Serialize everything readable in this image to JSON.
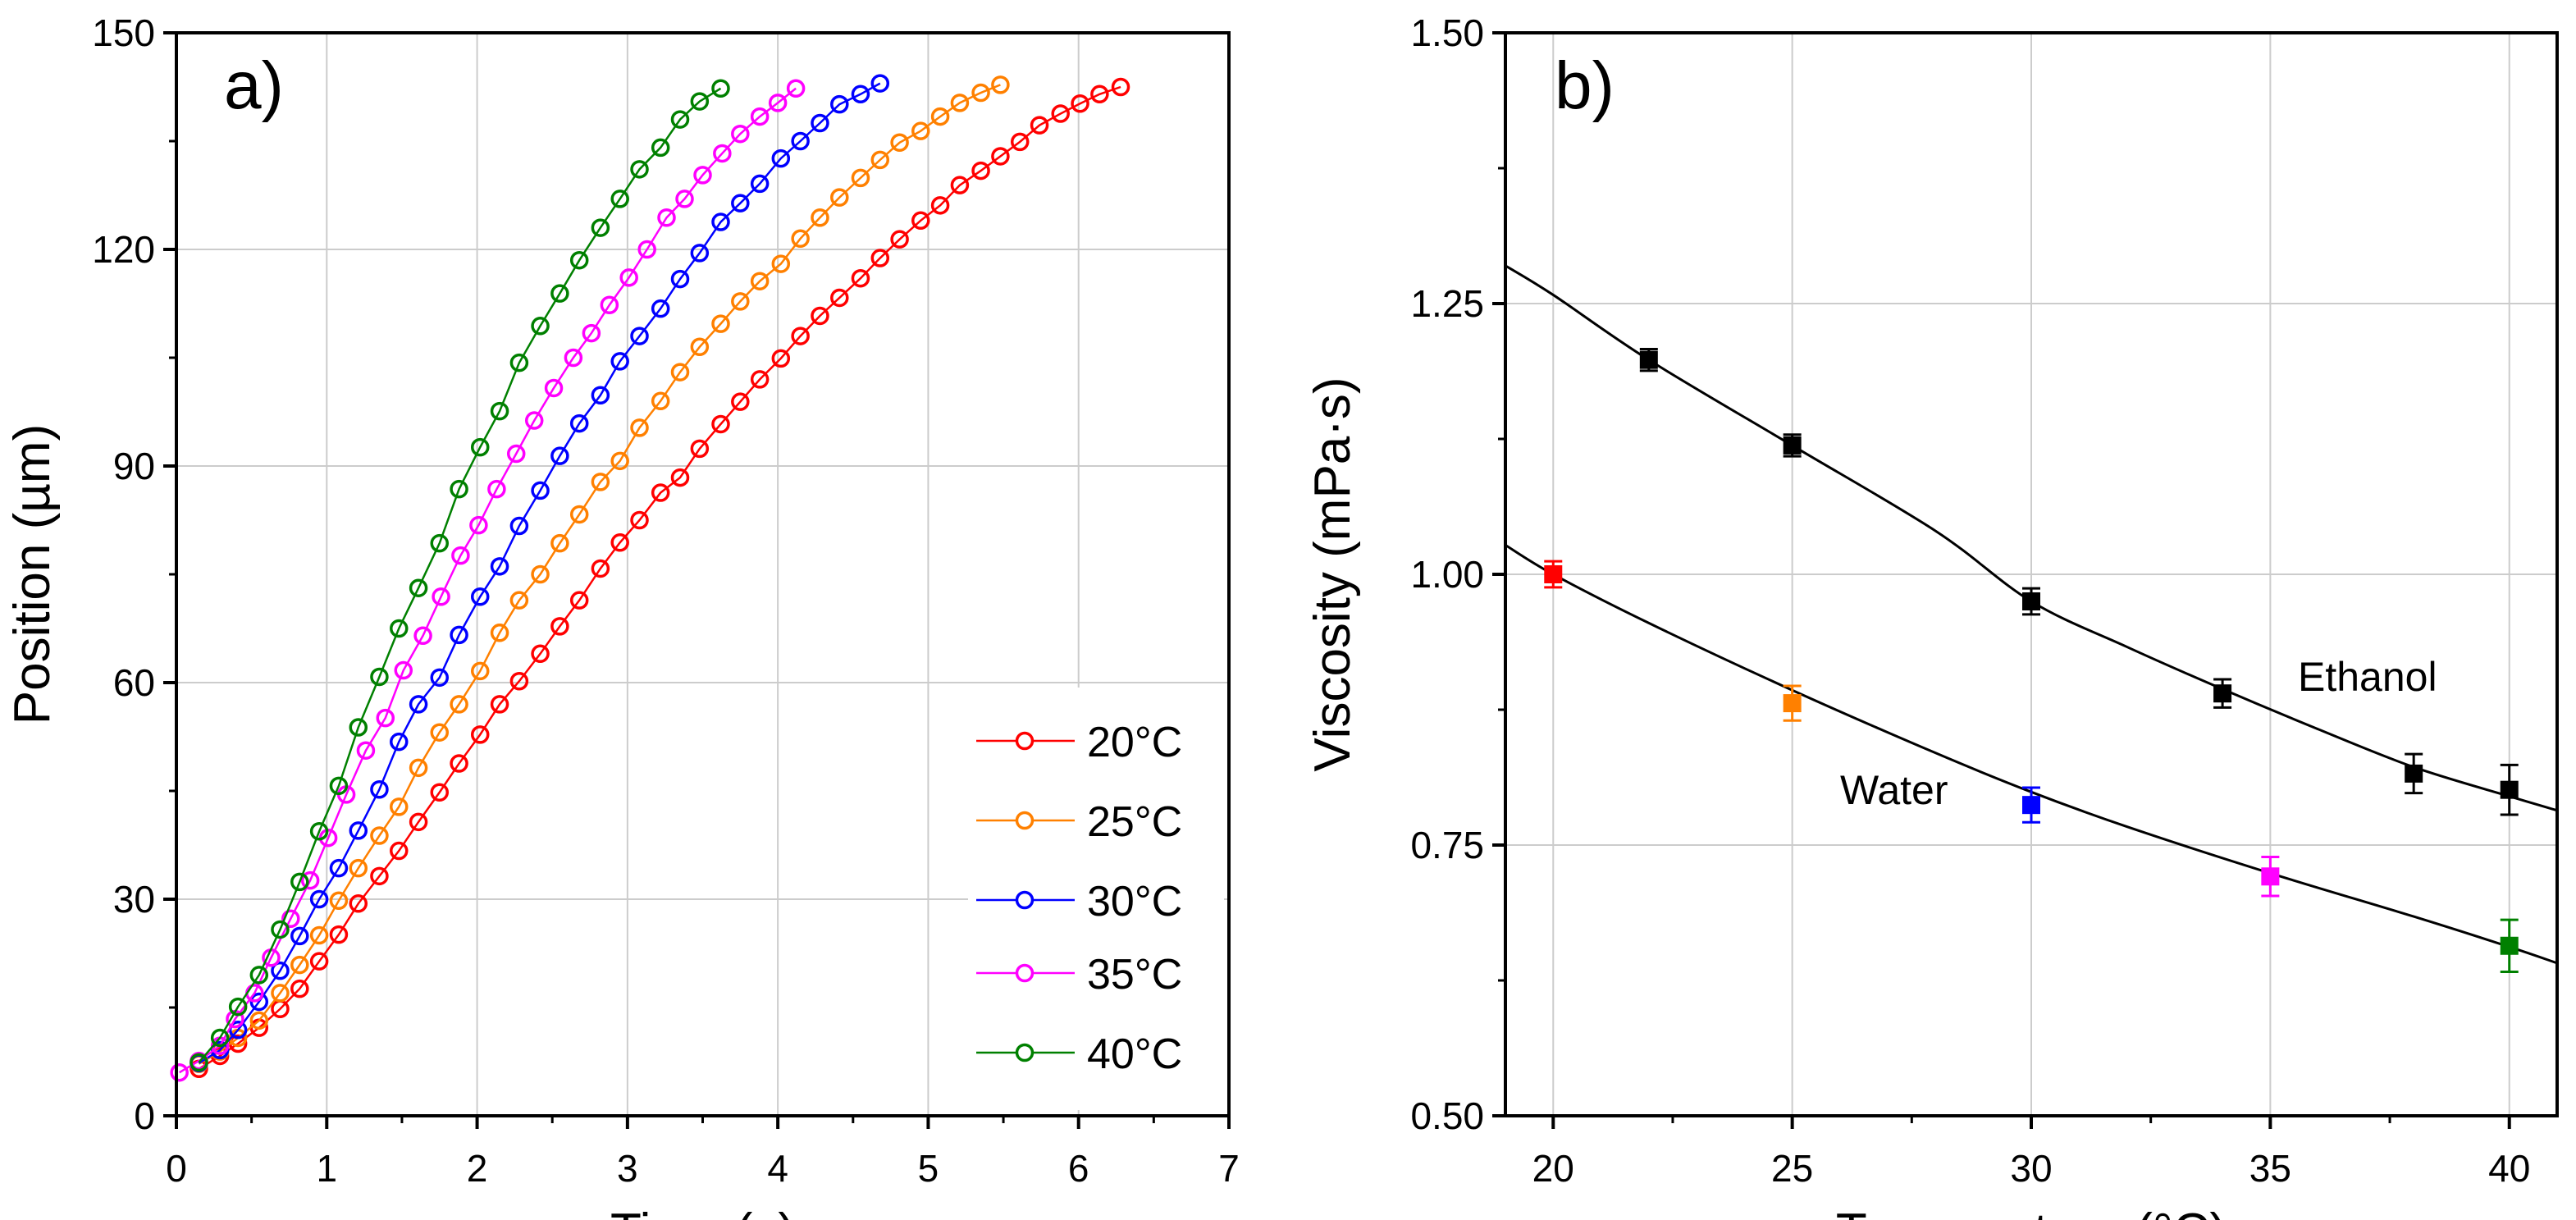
{
  "chart_data": [
    {
      "type": "line",
      "panel_label": "a)",
      "xlabel": "Time (s)",
      "ylabel": "Position (µm)",
      "xlim": [
        0,
        7
      ],
      "ylim": [
        0,
        150
      ],
      "xticks": [
        "0",
        "1",
        "2",
        "3",
        "4",
        "5",
        "6",
        "7"
      ],
      "yticks": [
        "0",
        "30",
        "60",
        "90",
        "120",
        "150"
      ],
      "grid": true,
      "legend_position": "bottom-right",
      "series": [
        {
          "name": "20°C",
          "color": "#ff0000",
          "points": [
            [
              0.15,
              6.5
            ],
            [
              0.29,
              8.3
            ],
            [
              0.41,
              10
            ],
            [
              0.55,
              12.2
            ],
            [
              0.69,
              14.8
            ],
            [
              0.82,
              17.6
            ],
            [
              0.95,
              21.4
            ],
            [
              1.08,
              25.1
            ],
            [
              1.21,
              29.4
            ],
            [
              1.35,
              33.2
            ],
            [
              1.48,
              36.7
            ],
            [
              1.61,
              40.7
            ],
            [
              1.75,
              44.8
            ],
            [
              1.88,
              48.8
            ],
            [
              2.02,
              52.8
            ],
            [
              2.15,
              57
            ],
            [
              2.28,
              60.2
            ],
            [
              2.42,
              64
            ],
            [
              2.55,
              67.8
            ],
            [
              2.68,
              71.4
            ],
            [
              2.82,
              75.8
            ],
            [
              2.95,
              79.4
            ],
            [
              3.08,
              82.5
            ],
            [
              3.22,
              86.3
            ],
            [
              3.35,
              88.4
            ],
            [
              3.48,
              92.4
            ],
            [
              3.62,
              95.8
            ],
            [
              3.75,
              98.9
            ],
            [
              3.88,
              102
            ],
            [
              4.02,
              104.9
            ],
            [
              4.15,
              108
            ],
            [
              4.28,
              110.8
            ],
            [
              4.41,
              113.3
            ],
            [
              4.55,
              116
            ],
            [
              4.68,
              118.8
            ],
            [
              4.81,
              121.4
            ],
            [
              4.95,
              124
            ],
            [
              5.08,
              126.1
            ],
            [
              5.21,
              128.9
            ],
            [
              5.35,
              130.9
            ],
            [
              5.48,
              132.9
            ],
            [
              5.61,
              134.9
            ],
            [
              5.74,
              137.2
            ],
            [
              5.88,
              138.8
            ],
            [
              6.01,
              140.2
            ],
            [
              6.14,
              141.5
            ],
            [
              6.28,
              142.5
            ]
          ]
        },
        {
          "name": "25°C",
          "color": "#ff8000",
          "points": [
            [
              0.15,
              7.2
            ],
            [
              0.29,
              8.9
            ],
            [
              0.41,
              10.8
            ],
            [
              0.55,
              13.2
            ],
            [
              0.69,
              17
            ],
            [
              0.82,
              20.9
            ],
            [
              0.95,
              25
            ],
            [
              1.08,
              29.8
            ],
            [
              1.21,
              34.3
            ],
            [
              1.35,
              38.8
            ],
            [
              1.48,
              42.8
            ],
            [
              1.61,
              48.2
            ],
            [
              1.75,
              53.1
            ],
            [
              1.88,
              57
            ],
            [
              2.02,
              61.6
            ],
            [
              2.15,
              66.9
            ],
            [
              2.28,
              71.4
            ],
            [
              2.42,
              75
            ],
            [
              2.55,
              79.3
            ],
            [
              2.68,
              83.3
            ],
            [
              2.82,
              87.8
            ],
            [
              2.95,
              90.7
            ],
            [
              3.08,
              95.3
            ],
            [
              3.22,
              99
            ],
            [
              3.35,
              103
            ],
            [
              3.48,
              106.5
            ],
            [
              3.62,
              109.7
            ],
            [
              3.75,
              112.8
            ],
            [
              3.88,
              115.6
            ],
            [
              4.02,
              118
            ],
            [
              4.15,
              121.5
            ],
            [
              4.28,
              124.4
            ],
            [
              4.41,
              127.2
            ],
            [
              4.55,
              129.9
            ],
            [
              4.68,
              132.4
            ],
            [
              4.81,
              134.8
            ],
            [
              4.95,
              136.4
            ],
            [
              5.08,
              138.4
            ],
            [
              5.21,
              140.3
            ],
            [
              5.35,
              141.7
            ],
            [
              5.48,
              142.8
            ]
          ]
        },
        {
          "name": "30°C",
          "color": "#0000ff",
          "points": [
            [
              0.15,
              7.3
            ],
            [
              0.29,
              9.1
            ],
            [
              0.41,
              11.9
            ],
            [
              0.55,
              15.8
            ],
            [
              0.69,
              20.1
            ],
            [
              0.82,
              24.9
            ],
            [
              0.95,
              30
            ],
            [
              1.08,
              34.3
            ],
            [
              1.21,
              39.5
            ],
            [
              1.35,
              45.2
            ],
            [
              1.48,
              51.8
            ],
            [
              1.61,
              57
            ],
            [
              1.75,
              60.7
            ],
            [
              1.88,
              66.6
            ],
            [
              2.02,
              71.9
            ],
            [
              2.15,
              76.1
            ],
            [
              2.28,
              81.7
            ],
            [
              2.42,
              86.6
            ],
            [
              2.55,
              91.4
            ],
            [
              2.68,
              95.9
            ],
            [
              2.82,
              99.8
            ],
            [
              2.95,
              104.5
            ],
            [
              3.08,
              108
            ],
            [
              3.22,
              111.8
            ],
            [
              3.35,
              115.9
            ],
            [
              3.48,
              119.5
            ],
            [
              3.62,
              123.8
            ],
            [
              3.75,
              126.4
            ],
            [
              3.88,
              129.1
            ],
            [
              4.02,
              132.6
            ],
            [
              4.15,
              135
            ],
            [
              4.28,
              137.5
            ],
            [
              4.41,
              140.1
            ],
            [
              4.55,
              141.5
            ],
            [
              4.68,
              143
            ]
          ]
        },
        {
          "name": "35°C",
          "color": "#ff00ff",
          "points": [
            [
              0.02,
              6
            ],
            [
              0.15,
              7.6
            ],
            [
              0.29,
              9.7
            ],
            [
              0.39,
              13.4
            ],
            [
              0.52,
              17
            ],
            [
              0.63,
              21.9
            ],
            [
              0.76,
              27.3
            ],
            [
              0.89,
              32.6
            ],
            [
              1.01,
              38.5
            ],
            [
              1.13,
              44.5
            ],
            [
              1.26,
              50.6
            ],
            [
              1.39,
              55.1
            ],
            [
              1.51,
              61.7
            ],
            [
              1.64,
              66.5
            ],
            [
              1.76,
              71.9
            ],
            [
              1.89,
              77.6
            ],
            [
              2.01,
              81.8
            ],
            [
              2.13,
              86.8
            ],
            [
              2.26,
              91.7
            ],
            [
              2.38,
              96.3
            ],
            [
              2.51,
              100.8
            ],
            [
              2.64,
              105
            ],
            [
              2.76,
              108.4
            ],
            [
              2.88,
              112.3
            ],
            [
              3.01,
              116.1
            ],
            [
              3.13,
              120
            ],
            [
              3.26,
              124.4
            ],
            [
              3.38,
              127
            ],
            [
              3.5,
              130.3
            ],
            [
              3.63,
              133.3
            ],
            [
              3.75,
              136
            ],
            [
              3.88,
              138.4
            ],
            [
              4.0,
              140.3
            ],
            [
              4.12,
              142.3
            ]
          ]
        },
        {
          "name": "40°C",
          "color": "#008000",
          "points": [
            [
              0.15,
              7.4
            ],
            [
              0.29,
              10.8
            ],
            [
              0.41,
              15.1
            ],
            [
              0.55,
              19.5
            ],
            [
              0.69,
              25.8
            ],
            [
              0.82,
              32.4
            ],
            [
              0.95,
              39.4
            ],
            [
              1.08,
              45.7
            ],
            [
              1.21,
              53.8
            ],
            [
              1.35,
              60.8
            ],
            [
              1.48,
              67.5
            ],
            [
              1.61,
              73.1
            ],
            [
              1.75,
              79.3
            ],
            [
              1.88,
              86.8
            ],
            [
              2.02,
              92.6
            ],
            [
              2.15,
              97.6
            ],
            [
              2.28,
              104.3
            ],
            [
              2.42,
              109.4
            ],
            [
              2.55,
              113.9
            ],
            [
              2.68,
              118.5
            ],
            [
              2.82,
              123
            ],
            [
              2.95,
              127
            ],
            [
              3.08,
              131.1
            ],
            [
              3.22,
              134.1
            ],
            [
              3.35,
              138
            ],
            [
              3.48,
              140.5
            ],
            [
              3.62,
              142.3
            ]
          ]
        }
      ]
    },
    {
      "type": "scatter",
      "panel_label": "b)",
      "xlabel": "Temperature (°C)",
      "ylabel": "Viscosity (mPa·s)",
      "xlim": [
        19,
        41
      ],
      "ylim": [
        0.5,
        1.5
      ],
      "xticks": [
        "20",
        "25",
        "30",
        "35",
        "40"
      ],
      "yticks": [
        "0.50",
        "0.75",
        "1.00",
        "1.25",
        "1.50"
      ],
      "grid": true,
      "series": [
        {
          "name": "Ethanol",
          "points": [
            {
              "x": 22,
              "y": 1.198,
              "err": 0.01,
              "color": "#000000"
            },
            {
              "x": 25,
              "y": 1.119,
              "err": 0.01,
              "color": "#000000"
            },
            {
              "x": 30,
              "y": 0.975,
              "err": 0.012,
              "color": "#000000"
            },
            {
              "x": 34,
              "y": 0.89,
              "err": 0.013,
              "color": "#000000"
            },
            {
              "x": 38,
              "y": 0.816,
              "err": 0.018,
              "color": "#000000"
            },
            {
              "x": 40,
              "y": 0.801,
              "err": 0.023,
              "color": "#000000"
            }
          ],
          "fit": [
            [
              19,
              1.285
            ],
            [
              20,
              1.258
            ],
            [
              22,
              1.198
            ],
            [
              25,
              1.119
            ],
            [
              28,
              1.04
            ],
            [
              30,
              0.975
            ],
            [
              32,
              0.933
            ],
            [
              34,
              0.894
            ],
            [
              36,
              0.857
            ],
            [
              38,
              0.822
            ],
            [
              40,
              0.795
            ],
            [
              41,
              0.782
            ]
          ]
        },
        {
          "name": "Water",
          "points": [
            {
              "x": 20,
              "y": 1.0,
              "err": 0.012,
              "color": "#ff0000"
            },
            {
              "x": 25,
              "y": 0.881,
              "err": 0.016,
              "color": "#ff8000"
            },
            {
              "x": 30,
              "y": 0.787,
              "err": 0.016,
              "color": "#0000ff"
            },
            {
              "x": 35,
              "y": 0.721,
              "err": 0.018,
              "color": "#ff00ff"
            },
            {
              "x": 40,
              "y": 0.657,
              "err": 0.024,
              "color": "#008000"
            }
          ],
          "fit": [
            [
              19,
              1.027
            ],
            [
              20,
              1.0
            ],
            [
              22,
              0.955
            ],
            [
              25,
              0.893
            ],
            [
              28,
              0.835
            ],
            [
              30,
              0.799
            ],
            [
              32,
              0.767
            ],
            [
              35,
              0.724
            ],
            [
              38,
              0.684
            ],
            [
              40,
              0.656
            ],
            [
              41,
              0.641
            ]
          ]
        }
      ],
      "annotations": [
        "Ethanol",
        "Water"
      ]
    }
  ]
}
